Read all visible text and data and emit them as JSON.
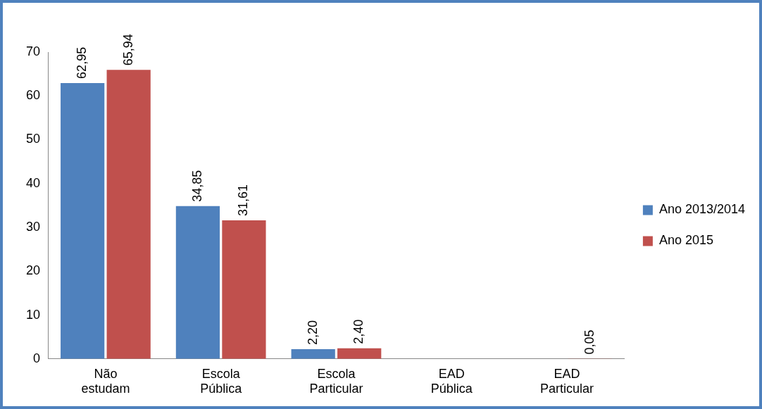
{
  "chart_data": {
    "type": "bar",
    "categories": [
      "Não estudam",
      "Escola Pública",
      "Escola Particular",
      "EAD Pública",
      "EAD Particular"
    ],
    "series": [
      {
        "name": "Ano 2013/2014",
        "color": "#4f81bd",
        "values": [
          62.95,
          34.85,
          2.2,
          null,
          null
        ],
        "value_labels": [
          "62,95",
          "34,85",
          "2,20",
          null,
          null
        ]
      },
      {
        "name": "Ano 2015",
        "color": "#c0504d",
        "values": [
          65.94,
          31.61,
          2.4,
          null,
          0.05
        ],
        "value_labels": [
          "65,94",
          "31,61",
          "2,40",
          null,
          "0,05"
        ]
      }
    ],
    "ylim": [
      0,
      70
    ],
    "yticks": [
      0,
      10,
      20,
      30,
      40,
      50,
      60,
      70
    ],
    "grid": false,
    "legend": "right"
  }
}
